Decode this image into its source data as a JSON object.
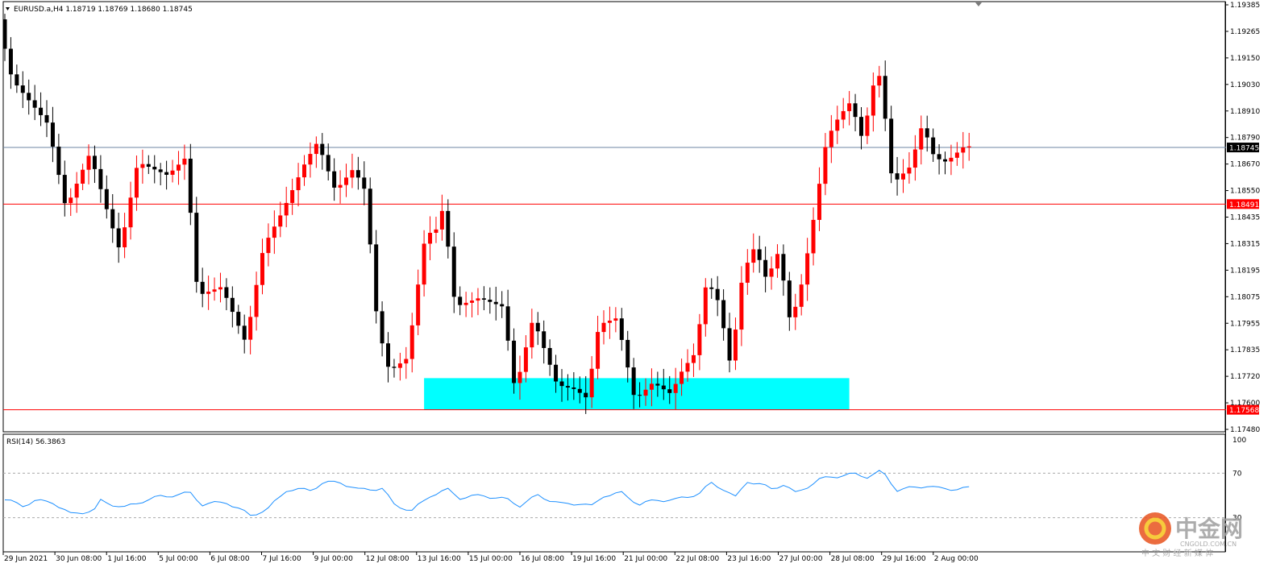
{
  "header": {
    "symbol_line": "EURUSD.a,H4  1.18719 1.18769 1.18680 1.18745"
  },
  "colors": {
    "bull": "#ff0000",
    "bear": "#000000",
    "last_price_line": "#6d84a3",
    "hline": "#ff0000",
    "zone": "#00ffff",
    "rsi": "#1e90ff",
    "label_dark": "#000000",
    "label_red": "#ff0000"
  },
  "watermark": {
    "brand": "中金网",
    "url": "CNGOLD.COM.CN",
    "tagline": "中 文 财 经 新 媒 体"
  },
  "chart_data": [
    {
      "type": "candlestick",
      "title": "EURUSD.a,H4",
      "ohlc_header": {
        "open": 1.18719,
        "high": 1.18769,
        "low": 1.1868,
        "close": 1.18745
      },
      "ylim": [
        1.1748,
        1.19385
      ],
      "y_ticks": [
        "1.19385",
        "1.19265",
        "1.19150",
        "1.19030",
        "1.18910",
        "1.18790",
        "1.18670",
        "1.18550",
        "1.18435",
        "1.18315",
        "1.18195",
        "1.18075",
        "1.17955",
        "1.17835",
        "1.17720",
        "1.17600",
        "1.17480"
      ],
      "x_ticks": [
        "29 Jun 2021",
        "30 Jun 08:00",
        "1 Jul 16:00",
        "5 Jul 00:00",
        "6 Jul 08:00",
        "7 Jul 16:00",
        "9 Jul 00:00",
        "12 Jul 08:00",
        "13 Jul 16:00",
        "15 Jul 00:00",
        "16 Jul 08:00",
        "19 Jul 16:00",
        "21 Jul 00:00",
        "22 Jul 08:00",
        "23 Jul 16:00",
        "27 Jul 00:00",
        "28 Jul 08:00",
        "29 Jul 16:00",
        "2 Aug 00:00"
      ],
      "horizontal_lines": [
        {
          "value": 1.18745,
          "label": "1.18745",
          "style": "last-price"
        },
        {
          "value": 1.18491,
          "label": "1.18491",
          "style": "red"
        },
        {
          "value": 1.17568,
          "label": "1.17568",
          "style": "red"
        }
      ],
      "zone": {
        "from_bar": 70,
        "to_bar": 141,
        "low": 1.17568,
        "high": 1.1771
      },
      "keypoints": [
        {
          "bar": 0,
          "price": 1.1928
        },
        {
          "bar": 2,
          "price": 1.1905
        },
        {
          "bar": 5,
          "price": 1.1895
        },
        {
          "bar": 8,
          "price": 1.1885
        },
        {
          "bar": 11,
          "price": 1.1847
        },
        {
          "bar": 15,
          "price": 1.1872
        },
        {
          "bar": 18,
          "price": 1.1845
        },
        {
          "bar": 20,
          "price": 1.1828
        },
        {
          "bar": 23,
          "price": 1.1868
        },
        {
          "bar": 28,
          "price": 1.1862
        },
        {
          "bar": 31,
          "price": 1.187
        },
        {
          "bar": 33,
          "price": 1.1808
        },
        {
          "bar": 37,
          "price": 1.1812
        },
        {
          "bar": 41,
          "price": 1.1787
        },
        {
          "bar": 44,
          "price": 1.183
        },
        {
          "bar": 47,
          "price": 1.1845
        },
        {
          "bar": 51,
          "price": 1.1868
        },
        {
          "bar": 53,
          "price": 1.1877
        },
        {
          "bar": 56,
          "price": 1.1855
        },
        {
          "bar": 59,
          "price": 1.1865
        },
        {
          "bar": 61,
          "price": 1.1855
        },
        {
          "bar": 63,
          "price": 1.1795
        },
        {
          "bar": 65,
          "price": 1.1774
        },
        {
          "bar": 68,
          "price": 1.178
        },
        {
          "bar": 71,
          "price": 1.1835
        },
        {
          "bar": 73,
          "price": 1.1838
        },
        {
          "bar": 74,
          "price": 1.1848
        },
        {
          "bar": 76,
          "price": 1.1803
        },
        {
          "bar": 80,
          "price": 1.1807
        },
        {
          "bar": 84,
          "price": 1.1803
        },
        {
          "bar": 86,
          "price": 1.1765
        },
        {
          "bar": 89,
          "price": 1.1798
        },
        {
          "bar": 93,
          "price": 1.1768
        },
        {
          "bar": 96,
          "price": 1.1766
        },
        {
          "bar": 98,
          "price": 1.1762
        },
        {
          "bar": 100,
          "price": 1.1795
        },
        {
          "bar": 103,
          "price": 1.1798
        },
        {
          "bar": 106,
          "price": 1.1761
        },
        {
          "bar": 109,
          "price": 1.1769
        },
        {
          "bar": 112,
          "price": 1.1764
        },
        {
          "bar": 114,
          "price": 1.1775
        },
        {
          "bar": 116,
          "price": 1.1782
        },
        {
          "bar": 118,
          "price": 1.1815
        },
        {
          "bar": 120,
          "price": 1.1805
        },
        {
          "bar": 122,
          "price": 1.1776
        },
        {
          "bar": 124,
          "price": 1.1818
        },
        {
          "bar": 126,
          "price": 1.183
        },
        {
          "bar": 128,
          "price": 1.1815
        },
        {
          "bar": 130,
          "price": 1.1828
        },
        {
          "bar": 132,
          "price": 1.1795
        },
        {
          "bar": 134,
          "price": 1.1815
        },
        {
          "bar": 136,
          "price": 1.1845
        },
        {
          "bar": 138,
          "price": 1.1878
        },
        {
          "bar": 140,
          "price": 1.1888
        },
        {
          "bar": 142,
          "price": 1.1895
        },
        {
          "bar": 144,
          "price": 1.1878
        },
        {
          "bar": 146,
          "price": 1.1905
        },
        {
          "bar": 147,
          "price": 1.1907
        },
        {
          "bar": 149,
          "price": 1.1858
        },
        {
          "bar": 152,
          "price": 1.1866
        },
        {
          "bar": 154,
          "price": 1.1885
        },
        {
          "bar": 156,
          "price": 1.187
        },
        {
          "bar": 158,
          "price": 1.1868
        },
        {
          "bar": 161,
          "price": 1.1875
        }
      ]
    },
    {
      "type": "line",
      "title": "RSI(14) 56.3863",
      "name": "RSI(14)",
      "last_value": 56.3863,
      "ylim": [
        0,
        100
      ],
      "y_ticks": [
        "100",
        "70",
        "30"
      ],
      "levels": [
        70,
        30
      ],
      "keypoints": [
        {
          "bar": 0,
          "value": 46
        },
        {
          "bar": 3,
          "value": 41
        },
        {
          "bar": 5,
          "value": 45
        },
        {
          "bar": 8,
          "value": 44
        },
        {
          "bar": 11,
          "value": 33
        },
        {
          "bar": 15,
          "value": 37
        },
        {
          "bar": 16,
          "value": 45
        },
        {
          "bar": 20,
          "value": 39
        },
        {
          "bar": 23,
          "value": 45
        },
        {
          "bar": 26,
          "value": 49
        },
        {
          "bar": 31,
          "value": 52
        },
        {
          "bar": 33,
          "value": 42
        },
        {
          "bar": 37,
          "value": 44
        },
        {
          "bar": 41,
          "value": 32
        },
        {
          "bar": 44,
          "value": 38
        },
        {
          "bar": 47,
          "value": 55
        },
        {
          "bar": 51,
          "value": 55
        },
        {
          "bar": 53,
          "value": 61
        },
        {
          "bar": 56,
          "value": 62
        },
        {
          "bar": 59,
          "value": 55
        },
        {
          "bar": 61,
          "value": 56
        },
        {
          "bar": 63,
          "value": 56
        },
        {
          "bar": 65,
          "value": 42
        },
        {
          "bar": 68,
          "value": 36
        },
        {
          "bar": 71,
          "value": 50
        },
        {
          "bar": 74,
          "value": 55
        },
        {
          "bar": 76,
          "value": 48
        },
        {
          "bar": 80,
          "value": 50
        },
        {
          "bar": 84,
          "value": 46
        },
        {
          "bar": 86,
          "value": 41
        },
        {
          "bar": 89,
          "value": 50
        },
        {
          "bar": 93,
          "value": 42
        },
        {
          "bar": 96,
          "value": 43
        },
        {
          "bar": 98,
          "value": 40
        },
        {
          "bar": 100,
          "value": 50
        },
        {
          "bar": 103,
          "value": 52
        },
        {
          "bar": 106,
          "value": 42
        },
        {
          "bar": 109,
          "value": 46
        },
        {
          "bar": 112,
          "value": 46
        },
        {
          "bar": 114,
          "value": 49
        },
        {
          "bar": 116,
          "value": 52
        },
        {
          "bar": 118,
          "value": 61
        },
        {
          "bar": 120,
          "value": 56
        },
        {
          "bar": 122,
          "value": 48
        },
        {
          "bar": 124,
          "value": 63
        },
        {
          "bar": 126,
          "value": 60
        },
        {
          "bar": 128,
          "value": 56
        },
        {
          "bar": 130,
          "value": 60
        },
        {
          "bar": 132,
          "value": 52
        },
        {
          "bar": 134,
          "value": 58
        },
        {
          "bar": 136,
          "value": 64
        },
        {
          "bar": 138,
          "value": 67
        },
        {
          "bar": 140,
          "value": 68
        },
        {
          "bar": 142,
          "value": 69
        },
        {
          "bar": 144,
          "value": 67
        },
        {
          "bar": 146,
          "value": 71
        },
        {
          "bar": 147,
          "value": 68
        },
        {
          "bar": 149,
          "value": 55
        },
        {
          "bar": 152,
          "value": 57
        },
        {
          "bar": 154,
          "value": 59
        },
        {
          "bar": 156,
          "value": 56
        },
        {
          "bar": 158,
          "value": 56
        },
        {
          "bar": 161,
          "value": 56.3863
        }
      ]
    }
  ]
}
